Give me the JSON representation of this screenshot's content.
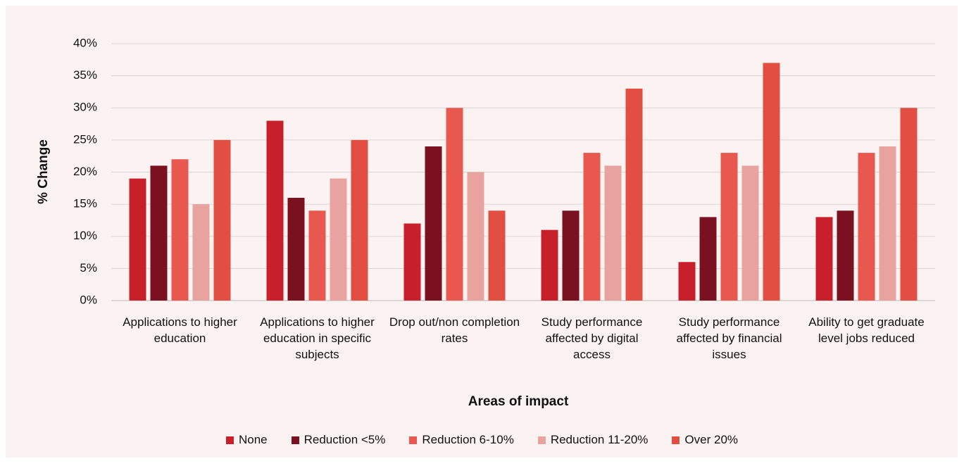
{
  "chart_data": {
    "type": "bar",
    "categories": [
      "Applications to higher education",
      "Applications to higher education in specific subjects",
      "Drop out/non completion rates",
      "Study performance affected by digital access",
      "Study performance affected by financial issues",
      "Ability to get graduate level jobs reduced"
    ],
    "series": [
      {
        "name": "None",
        "color": "#c8202a",
        "values": [
          19,
          28,
          12,
          11,
          6,
          13
        ]
      },
      {
        "name": "Reduction <5%",
        "color": "#7b1020",
        "values": [
          21,
          16,
          24,
          14,
          13,
          14
        ]
      },
      {
        "name": "Reduction 6-10%",
        "color": "#e8584e",
        "values": [
          22,
          14,
          30,
          23,
          23,
          23
        ]
      },
      {
        "name": "Reduction 11-20%",
        "color": "#e8a3a0",
        "values": [
          15,
          19,
          20,
          21,
          21,
          24
        ]
      },
      {
        "name": "Over 20%",
        "color": "#e24e42",
        "values": [
          25,
          25,
          14,
          33,
          37,
          30
        ]
      }
    ],
    "ylabel": "% Change",
    "xlabel": "Areas of impact",
    "ylim": [
      0,
      40
    ],
    "yticks": [
      {
        "value": 0,
        "label": "0%"
      },
      {
        "value": 5,
        "label": "5%"
      },
      {
        "value": 10,
        "label": "10%"
      },
      {
        "value": 15,
        "label": "15%"
      },
      {
        "value": 20,
        "label": "20%"
      },
      {
        "value": 25,
        "label": "25%"
      },
      {
        "value": 30,
        "label": "30%"
      },
      {
        "value": 35,
        "label": "35%"
      },
      {
        "value": 40,
        "label": "40%"
      }
    ],
    "grid": true,
    "legend": "bottom"
  }
}
